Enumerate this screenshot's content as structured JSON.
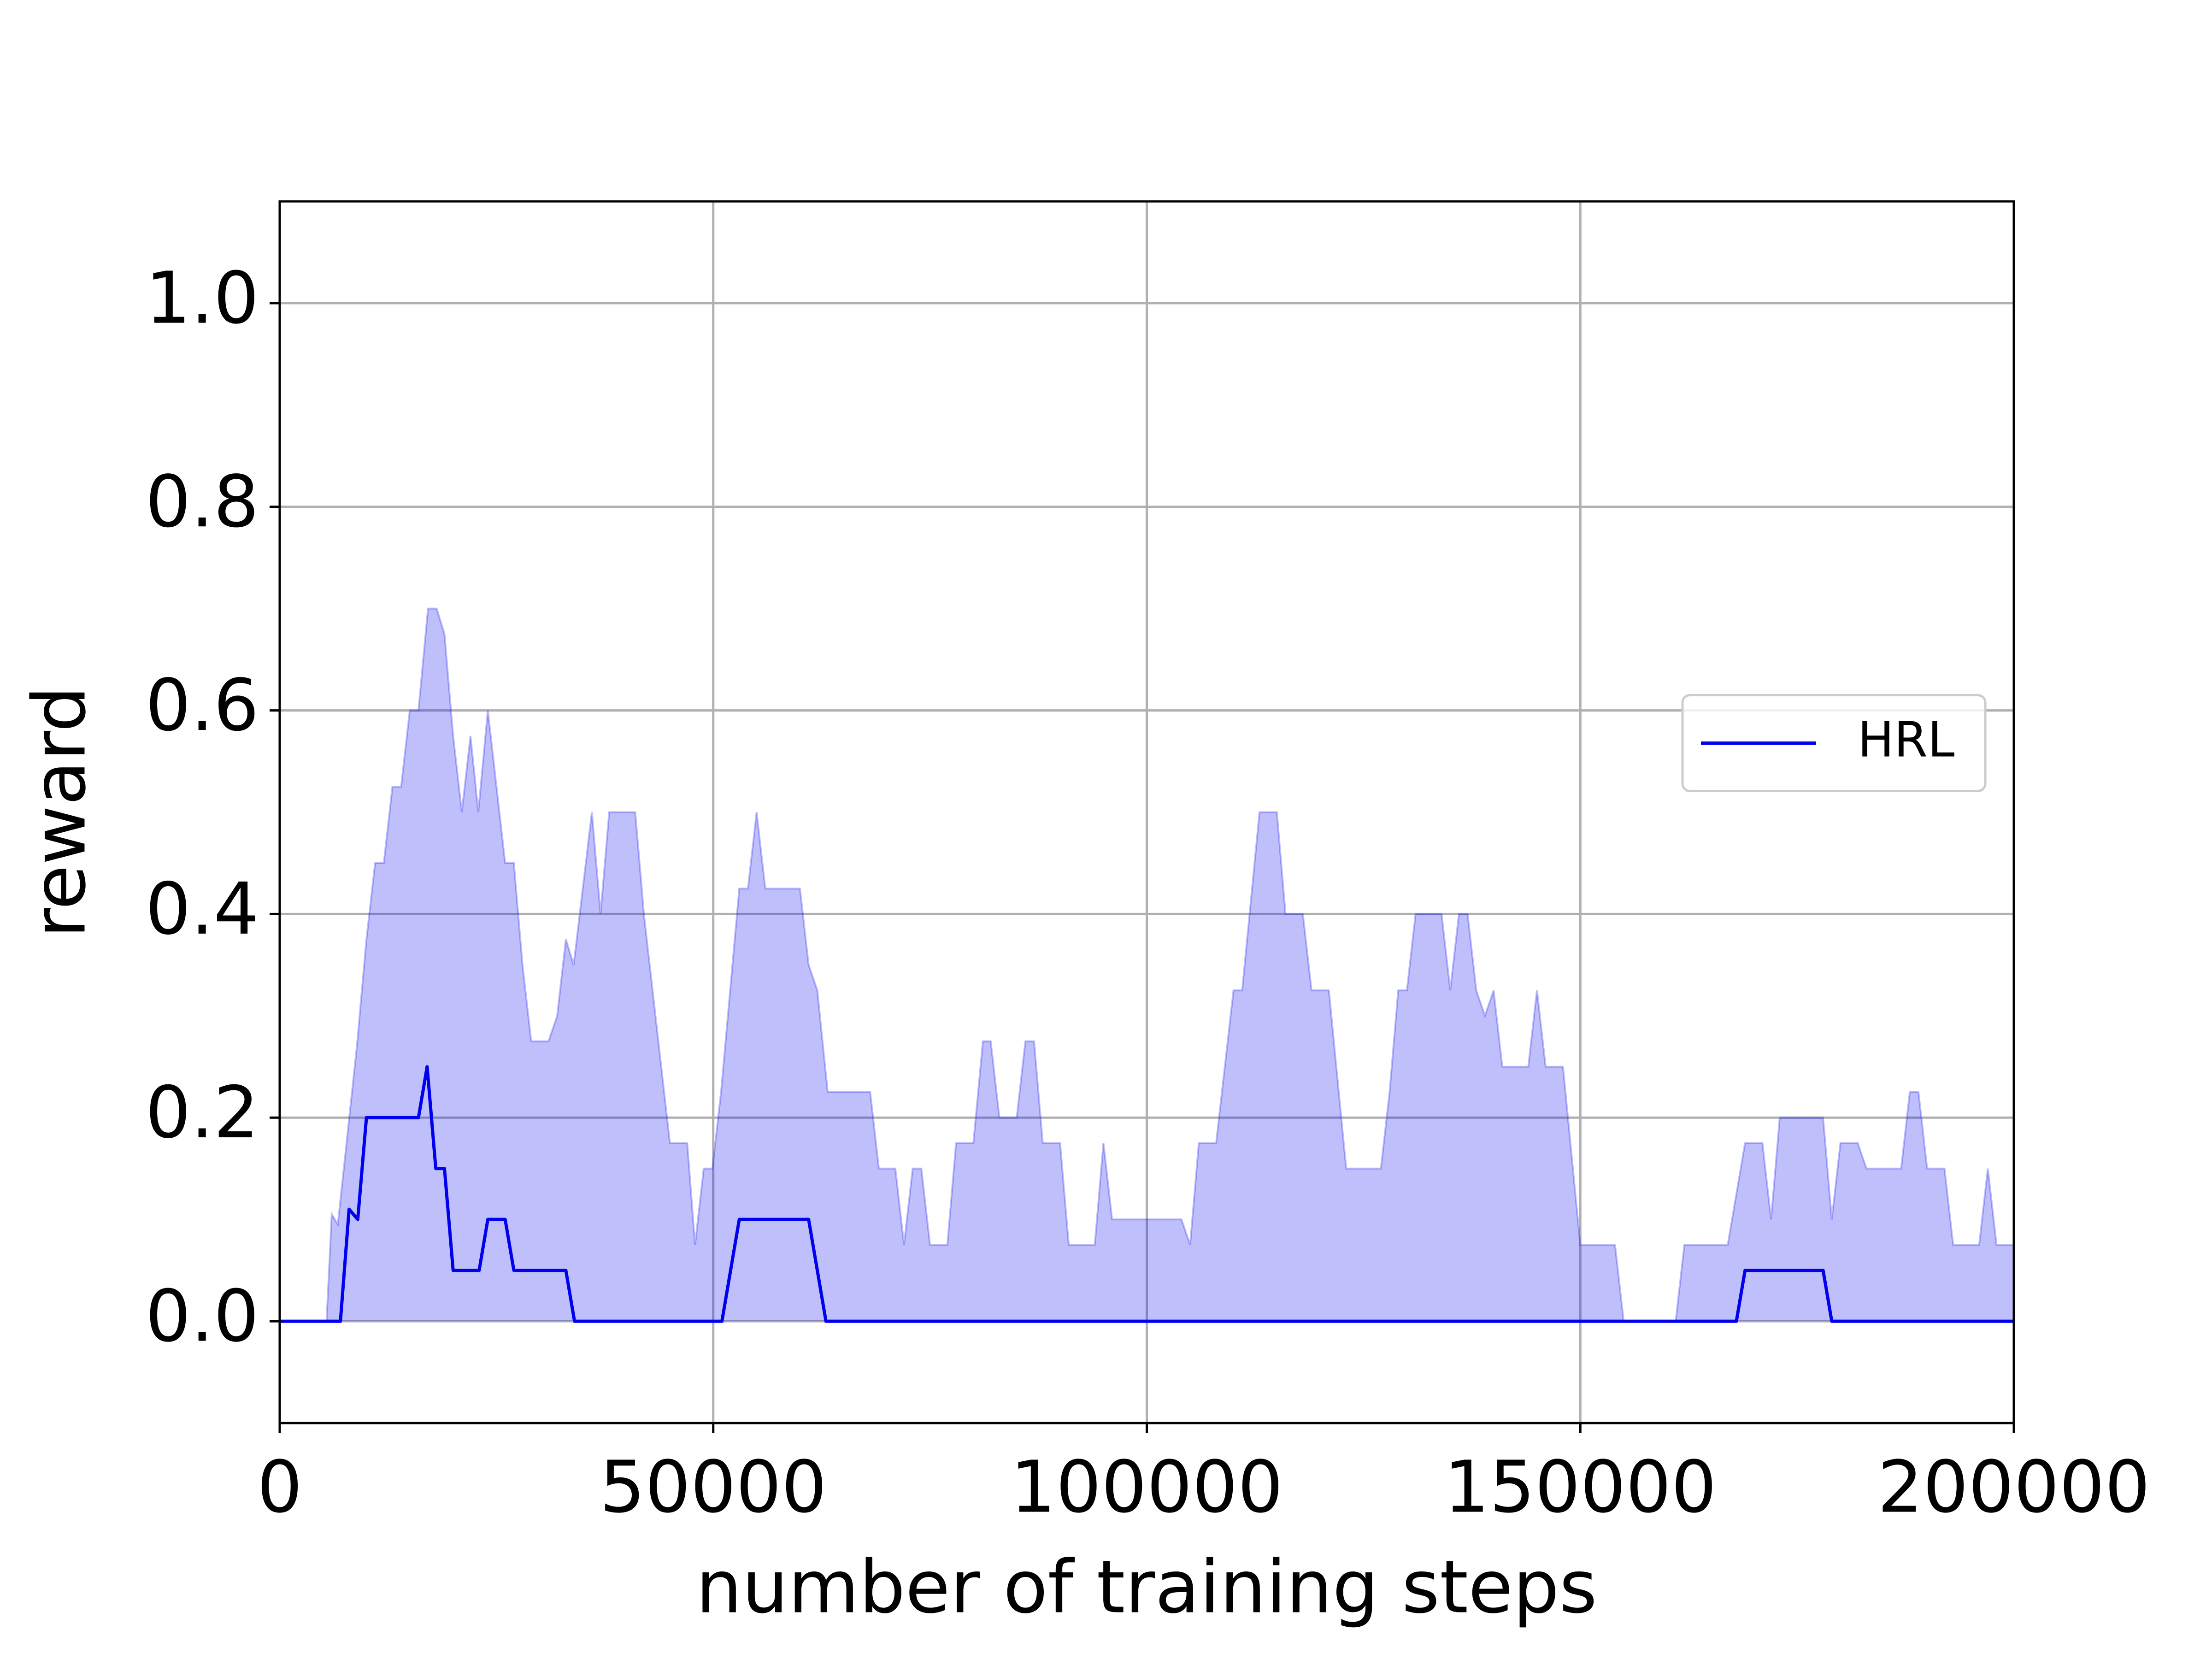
{
  "chart_data": {
    "type": "line",
    "xlabel": "number of training steps",
    "ylabel": "reward",
    "xlim": [
      0,
      200000
    ],
    "ylim": [
      -0.1,
      1.1
    ],
    "xticks": [
      0,
      50000,
      100000,
      150000,
      200000
    ],
    "yticks": [
      {
        "value": 0,
        "label": "0.0"
      },
      {
        "value": 0.2,
        "label": "0.2"
      },
      {
        "value": 0.4,
        "label": "0.4"
      },
      {
        "value": 0.6,
        "label": "0.6"
      },
      {
        "value": 0.8,
        "label": "0.8"
      },
      {
        "value": 1,
        "label": "1.0"
      }
    ],
    "grid": true,
    "legend_loc": "center right",
    "band_opacity": 0.25,
    "series": [
      {
        "name": "HRL",
        "color": "#0000ee",
        "x": [
          0,
          7000,
          8000,
          9000,
          10000,
          16000,
          17000,
          18000,
          19000,
          20000,
          23000,
          24000,
          26000,
          27000,
          33000,
          34000,
          51000,
          53000,
          61000,
          63000,
          168000,
          169000,
          178000,
          179000,
          200000
        ],
        "values": [
          0,
          0,
          0.11,
          0.1,
          0.2,
          0.2,
          0.25,
          0.15,
          0.15,
          0.05,
          0.05,
          0.1,
          0.1,
          0.05,
          0.05,
          0,
          0,
          0.1,
          0.1,
          0,
          0,
          0.05,
          0.05,
          0,
          0
        ],
        "band_x": [
          0,
          5400,
          6000,
          6700,
          8900,
          10000,
          11000,
          12000,
          13000,
          14000,
          15000,
          16000,
          17100,
          18100,
          19000,
          20000,
          21000,
          22000,
          22900,
          24000,
          25000,
          26000,
          27000,
          28000,
          29000,
          31000,
          32000,
          33000,
          33900,
          36000,
          37000,
          38000,
          41000,
          42000,
          45000,
          47000,
          47900,
          48900,
          49900,
          50900,
          53000,
          54000,
          55000,
          56000,
          60000,
          61000,
          62000,
          63200,
          68100,
          69100,
          71000,
          72000,
          73000,
          74000,
          75000,
          77000,
          78000,
          80000,
          81100,
          82000,
          83000,
          85000,
          86000,
          87000,
          88000,
          90000,
          91000,
          94000,
          95000,
          96000,
          104000,
          105000,
          106000,
          108000,
          110000,
          111000,
          113000,
          115000,
          116000,
          118000,
          119000,
          121000,
          123000,
          127000,
          128000,
          129000,
          130000,
          131000,
          134000,
          135000,
          136000,
          137000,
          138000,
          139000,
          140000,
          141000,
          144000,
          145000,
          146000,
          148000,
          150000,
          154000,
          155000,
          161000,
          162000,
          167000,
          169000,
          171000,
          172000,
          173000,
          178000,
          179000,
          180000,
          182000,
          183000,
          187000,
          188000,
          189000,
          190000,
          192000,
          193000,
          196000,
          197000,
          198000,
          200000
        ],
        "band": [
          0,
          0,
          0.105,
          0.095,
          0.27,
          0.375,
          0.45,
          0.45,
          0.525,
          0.525,
          0.6,
          0.6,
          0.7,
          0.7,
          0.675,
          0.575,
          0.5,
          0.575,
          0.5,
          0.6,
          0.525,
          0.45,
          0.45,
          0.35,
          0.275,
          0.275,
          0.3,
          0.375,
          0.35,
          0.5,
          0.4,
          0.5,
          0.5,
          0.4,
          0.175,
          0.175,
          0.075,
          0.15,
          0.15,
          0.225,
          0.425,
          0.425,
          0.5,
          0.425,
          0.425,
          0.35,
          0.325,
          0.225,
          0.225,
          0.15,
          0.15,
          0.075,
          0.15,
          0.15,
          0.075,
          0.075,
          0.175,
          0.175,
          0.275,
          0.275,
          0.2,
          0.2,
          0.275,
          0.275,
          0.175,
          0.175,
          0.075,
          0.075,
          0.175,
          0.1,
          0.1,
          0.075,
          0.175,
          0.175,
          0.325,
          0.325,
          0.5,
          0.5,
          0.4,
          0.4,
          0.325,
          0.325,
          0.15,
          0.15,
          0.225,
          0.325,
          0.325,
          0.4,
          0.4,
          0.325,
          0.4,
          0.4,
          0.325,
          0.3,
          0.325,
          0.25,
          0.25,
          0.325,
          0.25,
          0.25,
          0.075,
          0.075,
          0,
          0,
          0.075,
          0.075,
          0.175,
          0.175,
          0.1,
          0.2,
          0.2,
          0.1,
          0.175,
          0.175,
          0.15,
          0.15,
          0.225,
          0.225,
          0.15,
          0.15,
          0.075,
          0.075,
          0.15,
          0.075,
          0.075
        ]
      }
    ]
  }
}
